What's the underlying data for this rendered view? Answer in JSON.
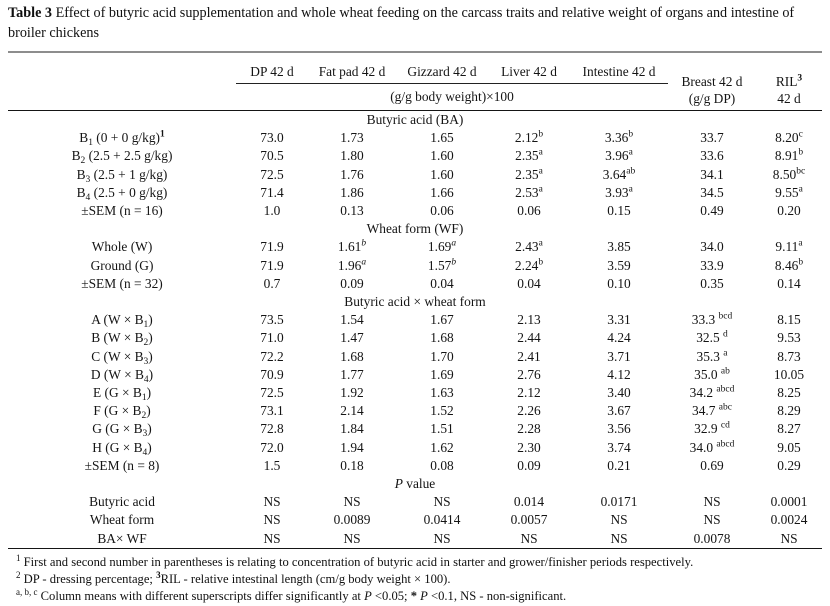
{
  "caption": {
    "label": "Table 3",
    "text": " Effect of butyric acid supplementation and whole wheat feeding on the carcass traits and relative weight of organs and intestine of broiler chickens"
  },
  "table": {
    "group_headers": [
      "DP 42 d",
      "Fat pad 42 d",
      "Gizzard 42 d",
      "Liver 42 d",
      "Intestine 42 d"
    ],
    "group_subheader": "(g/g body weight)×100",
    "right_headers": [
      {
        "line1": "Breast 42 d",
        "line2": "(g/g DP)"
      },
      {
        "line1": "RIL^{\\bf{3}}",
        "line2": "42 d"
      }
    ],
    "rows": [
      {
        "type": "section",
        "label": "Butyric acid (BA)"
      },
      {
        "type": "data",
        "label": "B_{1} (0 + 0 g/kg)^{\\bf{1}}",
        "cells": [
          "73.0",
          "1.73",
          "1.65",
          "2.12^{b}",
          "3.36^{b}",
          "33.7",
          "8.20^{c}"
        ]
      },
      {
        "type": "data",
        "label": "B_{2} (2.5 + 2.5 g/kg)",
        "cells": [
          "70.5",
          "1.80",
          "1.60",
          "2.35^{a}",
          "3.96^{a}",
          "33.6",
          "8.91^{b}"
        ]
      },
      {
        "type": "data",
        "label": "B_{3} (2.5 + 1 g/kg)",
        "cells": [
          "72.5",
          "1.76",
          "1.60",
          "2.35^{a}",
          "3.64^{ab}",
          "34.1",
          "8.50^{bc}"
        ]
      },
      {
        "type": "data",
        "label": "B_{4} (2.5 + 0 g/kg)",
        "cells": [
          "71.4",
          "1.86",
          "1.66",
          "2.53^{a}",
          "3.93^{a}",
          "34.5",
          "9.55^{a}"
        ]
      },
      {
        "type": "data",
        "label": "±SEM (n = 16)",
        "cells": [
          "1.0",
          "0.13",
          "0.06",
          "0.06",
          "0.15",
          "0.49",
          "0.20"
        ]
      },
      {
        "type": "section",
        "label": "Wheat form (WF)"
      },
      {
        "type": "data",
        "label": "Whole (W)",
        "cells": [
          "71.9",
          "1.61^{\\it{b}}",
          "1.69^{\\it{a}}",
          "2.43^{a}",
          "3.85",
          "34.0",
          "9.11^{a}"
        ]
      },
      {
        "type": "data",
        "label": "Ground (G)",
        "cells": [
          "71.9",
          "1.96^{\\it{a}}",
          "1.57^{\\it{b}}",
          "2.24^{b}",
          "3.59",
          "33.9",
          "8.46^{b}"
        ]
      },
      {
        "type": "data",
        "label": "±SEM (n = 32)",
        "cells": [
          "0.7",
          "0.09",
          "0.04",
          "0.04",
          "0.10",
          "0.35",
          "0.14"
        ]
      },
      {
        "type": "section",
        "label": "Butyric acid × wheat form"
      },
      {
        "type": "data",
        "label": "A (W × B_{1})",
        "cells": [
          "73.5",
          "1.54",
          "1.67",
          "2.13",
          "3.31",
          "33.3 ^{bcd}",
          "8.15"
        ]
      },
      {
        "type": "data",
        "label": "B (W × B_{2})",
        "cells": [
          "71.0",
          "1.47",
          "1.68",
          "2.44",
          "4.24",
          "32.5 ^{d}",
          "9.53"
        ]
      },
      {
        "type": "data",
        "label": "C (W × B_{3})",
        "cells": [
          "72.2",
          "1.68",
          "1.70",
          "2.41",
          "3.71",
          "35.3 ^{a}",
          "8.73"
        ]
      },
      {
        "type": "data",
        "label": "D (W × B_{4})",
        "cells": [
          "70.9",
          "1.77",
          "1.69",
          "2.76",
          "4.12",
          "35.0 ^{ab}",
          "10.05"
        ]
      },
      {
        "type": "data",
        "label": "E (G × B_{1})",
        "cells": [
          "72.5",
          "1.92",
          "1.63",
          "2.12",
          "3.40",
          "34.2 ^{abcd}",
          "8.25"
        ]
      },
      {
        "type": "data",
        "label": "F (G × B_{2})",
        "cells": [
          "73.1",
          "2.14",
          "1.52",
          "2.26",
          "3.67",
          "34.7 ^{abc}",
          "8.29"
        ]
      },
      {
        "type": "data",
        "label": "G (G × B_{3})",
        "cells": [
          "72.8",
          "1.84",
          "1.51",
          "2.28",
          "3.56",
          "32.9 ^{cd}",
          "8.27"
        ]
      },
      {
        "type": "data",
        "label": "H (G × B_{4})",
        "cells": [
          "72.0",
          "1.94",
          "1.62",
          "2.30",
          "3.74",
          "34.0 ^{abcd}",
          "9.05"
        ]
      },
      {
        "type": "data",
        "label": "±SEM (n = 8)",
        "cells": [
          "1.5",
          "0.18",
          "0.08",
          "0.09",
          "0.21",
          "0.69",
          "0.29"
        ]
      },
      {
        "type": "section",
        "label": "\\it{P} value"
      },
      {
        "type": "data",
        "label": "Butyric acid",
        "cells": [
          "NS",
          "NS",
          "NS",
          "0.014",
          "0.0171",
          "NS",
          "0.0001"
        ]
      },
      {
        "type": "data",
        "label": "Wheat form",
        "cells": [
          "NS",
          "0.0089",
          "0.0414",
          "0.0057",
          "NS",
          "NS",
          "0.0024"
        ]
      },
      {
        "type": "data",
        "label": "BA× WF",
        "cells": [
          "NS",
          "NS",
          "NS",
          "NS",
          "NS",
          "0.0078",
          "NS"
        ]
      }
    ]
  },
  "footnotes": [
    "^{1} First and second number in parentheses is relating to concentration of butyric acid in starter and grower/finisher periods respectively.",
    "^{2} DP - dressing percentage;   ^{\\bf{3}}RIL - relative intestinal length (cm/g body weight × 100).",
    "^{a, b, c} Column means with different superscripts differ significantly at \\it{P} <0.05; \\bf{*} \\it{P} <0.1, NS - non-significant."
  ],
  "colors": {
    "rule_top": "#8d8d8d",
    "rule": "#151515",
    "text": "#111111",
    "background": "#ffffff"
  }
}
